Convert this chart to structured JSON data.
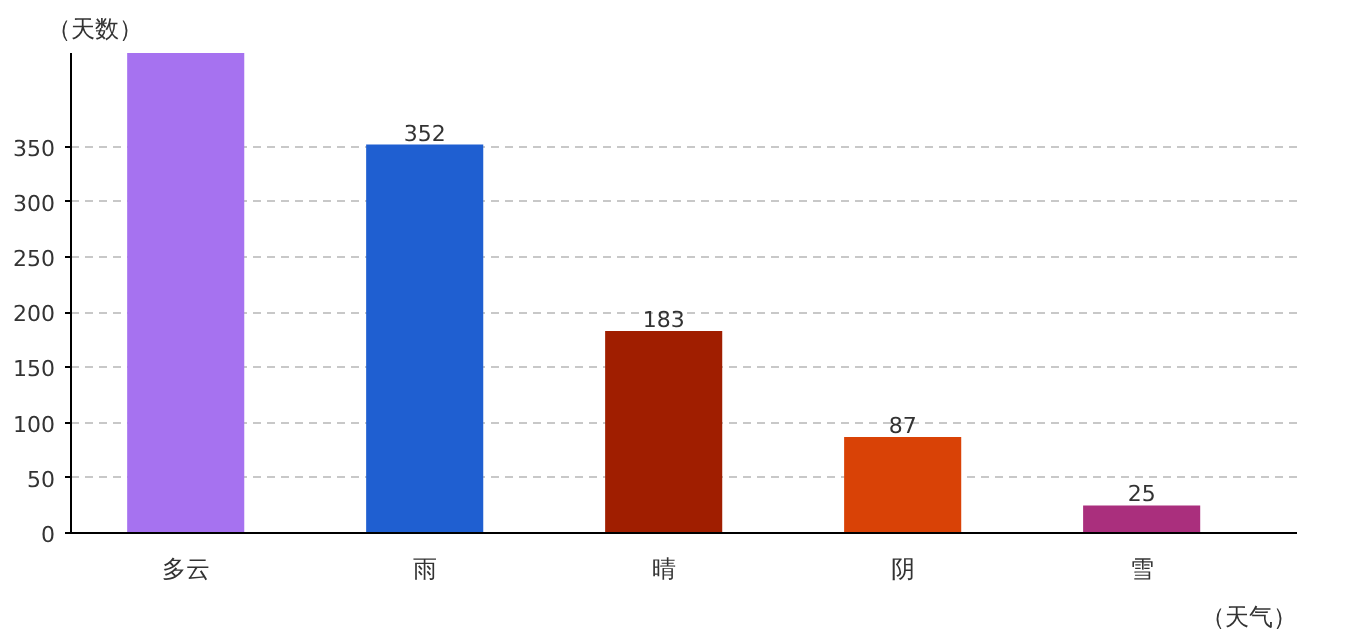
{
  "chart_data": {
    "type": "bar",
    "xlabel": "（天气）",
    "ylabel": "（天数）",
    "categories": [
      "多云",
      "雨",
      "晴",
      "阴",
      "雪"
    ],
    "values": [
      435,
      352,
      183,
      87,
      25
    ],
    "colors": [
      "#a672f0",
      "#1f5fd1",
      "#a01e00",
      "#d94206",
      "#aa2f7d"
    ],
    "value_labels": [
      null,
      "352",
      "183",
      "87",
      "25"
    ],
    "ylim": [
      0,
      435
    ],
    "yticks": [
      0,
      50,
      100,
      150,
      200,
      250,
      300,
      350
    ],
    "grid": "y"
  }
}
